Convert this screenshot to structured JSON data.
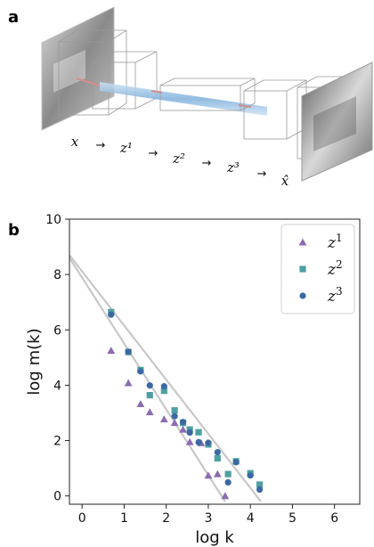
{
  "panel_a": {
    "label": "a",
    "sequence": [
      {
        "text": "x",
        "kind": "var"
      },
      {
        "text": "→",
        "kind": "arrow"
      },
      {
        "text": "z¹",
        "kind": "var"
      },
      {
        "text": "→",
        "kind": "arrow"
      },
      {
        "text": "z²",
        "kind": "var"
      },
      {
        "text": "→",
        "kind": "arrow"
      },
      {
        "text": "z³",
        "kind": "var"
      },
      {
        "text": "→",
        "kind": "arrow"
      },
      {
        "text": "x̂",
        "kind": "var"
      }
    ]
  },
  "panel_b": {
    "label": "b"
  },
  "chart_data": {
    "type": "scatter",
    "xlabel": "log k",
    "ylabel": "log m(k)",
    "xlim": [
      -0.3,
      6.6
    ],
    "ylim": [
      -0.3,
      10
    ],
    "xticks": [
      0,
      1,
      2,
      3,
      4,
      5,
      6
    ],
    "yticks": [
      0,
      2,
      4,
      6,
      8,
      10
    ],
    "grid": false,
    "legend_position": "top-right",
    "series": [
      {
        "name": "z1",
        "label_base": "z",
        "label_sup": "1",
        "marker": "triangle",
        "color": "#8b6bb1",
        "points": [
          [
            0.69,
            5.25
          ],
          [
            1.1,
            4.08
          ],
          [
            1.39,
            3.32
          ],
          [
            1.61,
            3.03
          ],
          [
            1.95,
            2.77
          ],
          [
            2.2,
            2.64
          ],
          [
            2.4,
            2.4
          ],
          [
            2.56,
            1.95
          ],
          [
            2.83,
            1.91
          ],
          [
            3.0,
            0.74
          ],
          [
            3.22,
            0.79
          ],
          [
            3.4,
            0.0
          ]
        ]
      },
      {
        "name": "z2",
        "label_base": "z",
        "label_sup": "2",
        "marker": "square",
        "color": "#4e9fa2",
        "points": [
          [
            0.69,
            6.64
          ],
          [
            1.1,
            5.2
          ],
          [
            1.39,
            4.55
          ],
          [
            1.61,
            3.64
          ],
          [
            1.95,
            3.8
          ],
          [
            2.2,
            3.09
          ],
          [
            2.4,
            2.64
          ],
          [
            2.56,
            2.4
          ],
          [
            2.77,
            2.3
          ],
          [
            3.0,
            1.86
          ],
          [
            3.22,
            1.36
          ],
          [
            3.47,
            0.79
          ],
          [
            3.66,
            1.25
          ],
          [
            4.0,
            0.82
          ],
          [
            4.22,
            0.41
          ]
        ]
      },
      {
        "name": "z3",
        "label_base": "z",
        "label_sup": "3",
        "marker": "circle",
        "color": "#3b6aa3",
        "points": [
          [
            0.69,
            6.55
          ],
          [
            1.1,
            5.21
          ],
          [
            1.39,
            4.5
          ],
          [
            1.61,
            3.99
          ],
          [
            1.95,
            3.96
          ],
          [
            2.2,
            2.88
          ],
          [
            2.4,
            2.67
          ],
          [
            2.56,
            2.29
          ],
          [
            2.77,
            1.94
          ],
          [
            3.0,
            1.92
          ],
          [
            3.22,
            1.58
          ],
          [
            3.47,
            0.49
          ],
          [
            3.66,
            1.22
          ],
          [
            4.0,
            0.74
          ],
          [
            4.22,
            0.23
          ]
        ]
      }
    ],
    "fit_lines": [
      {
        "points": [
          [
            -0.3,
            8.6
          ],
          [
            3.4,
            -0.2
          ]
        ],
        "color": "#c8c8c8"
      },
      {
        "points": [
          [
            -0.3,
            8.7
          ],
          [
            4.25,
            -0.2
          ]
        ],
        "color": "#c8c8c8"
      }
    ]
  }
}
